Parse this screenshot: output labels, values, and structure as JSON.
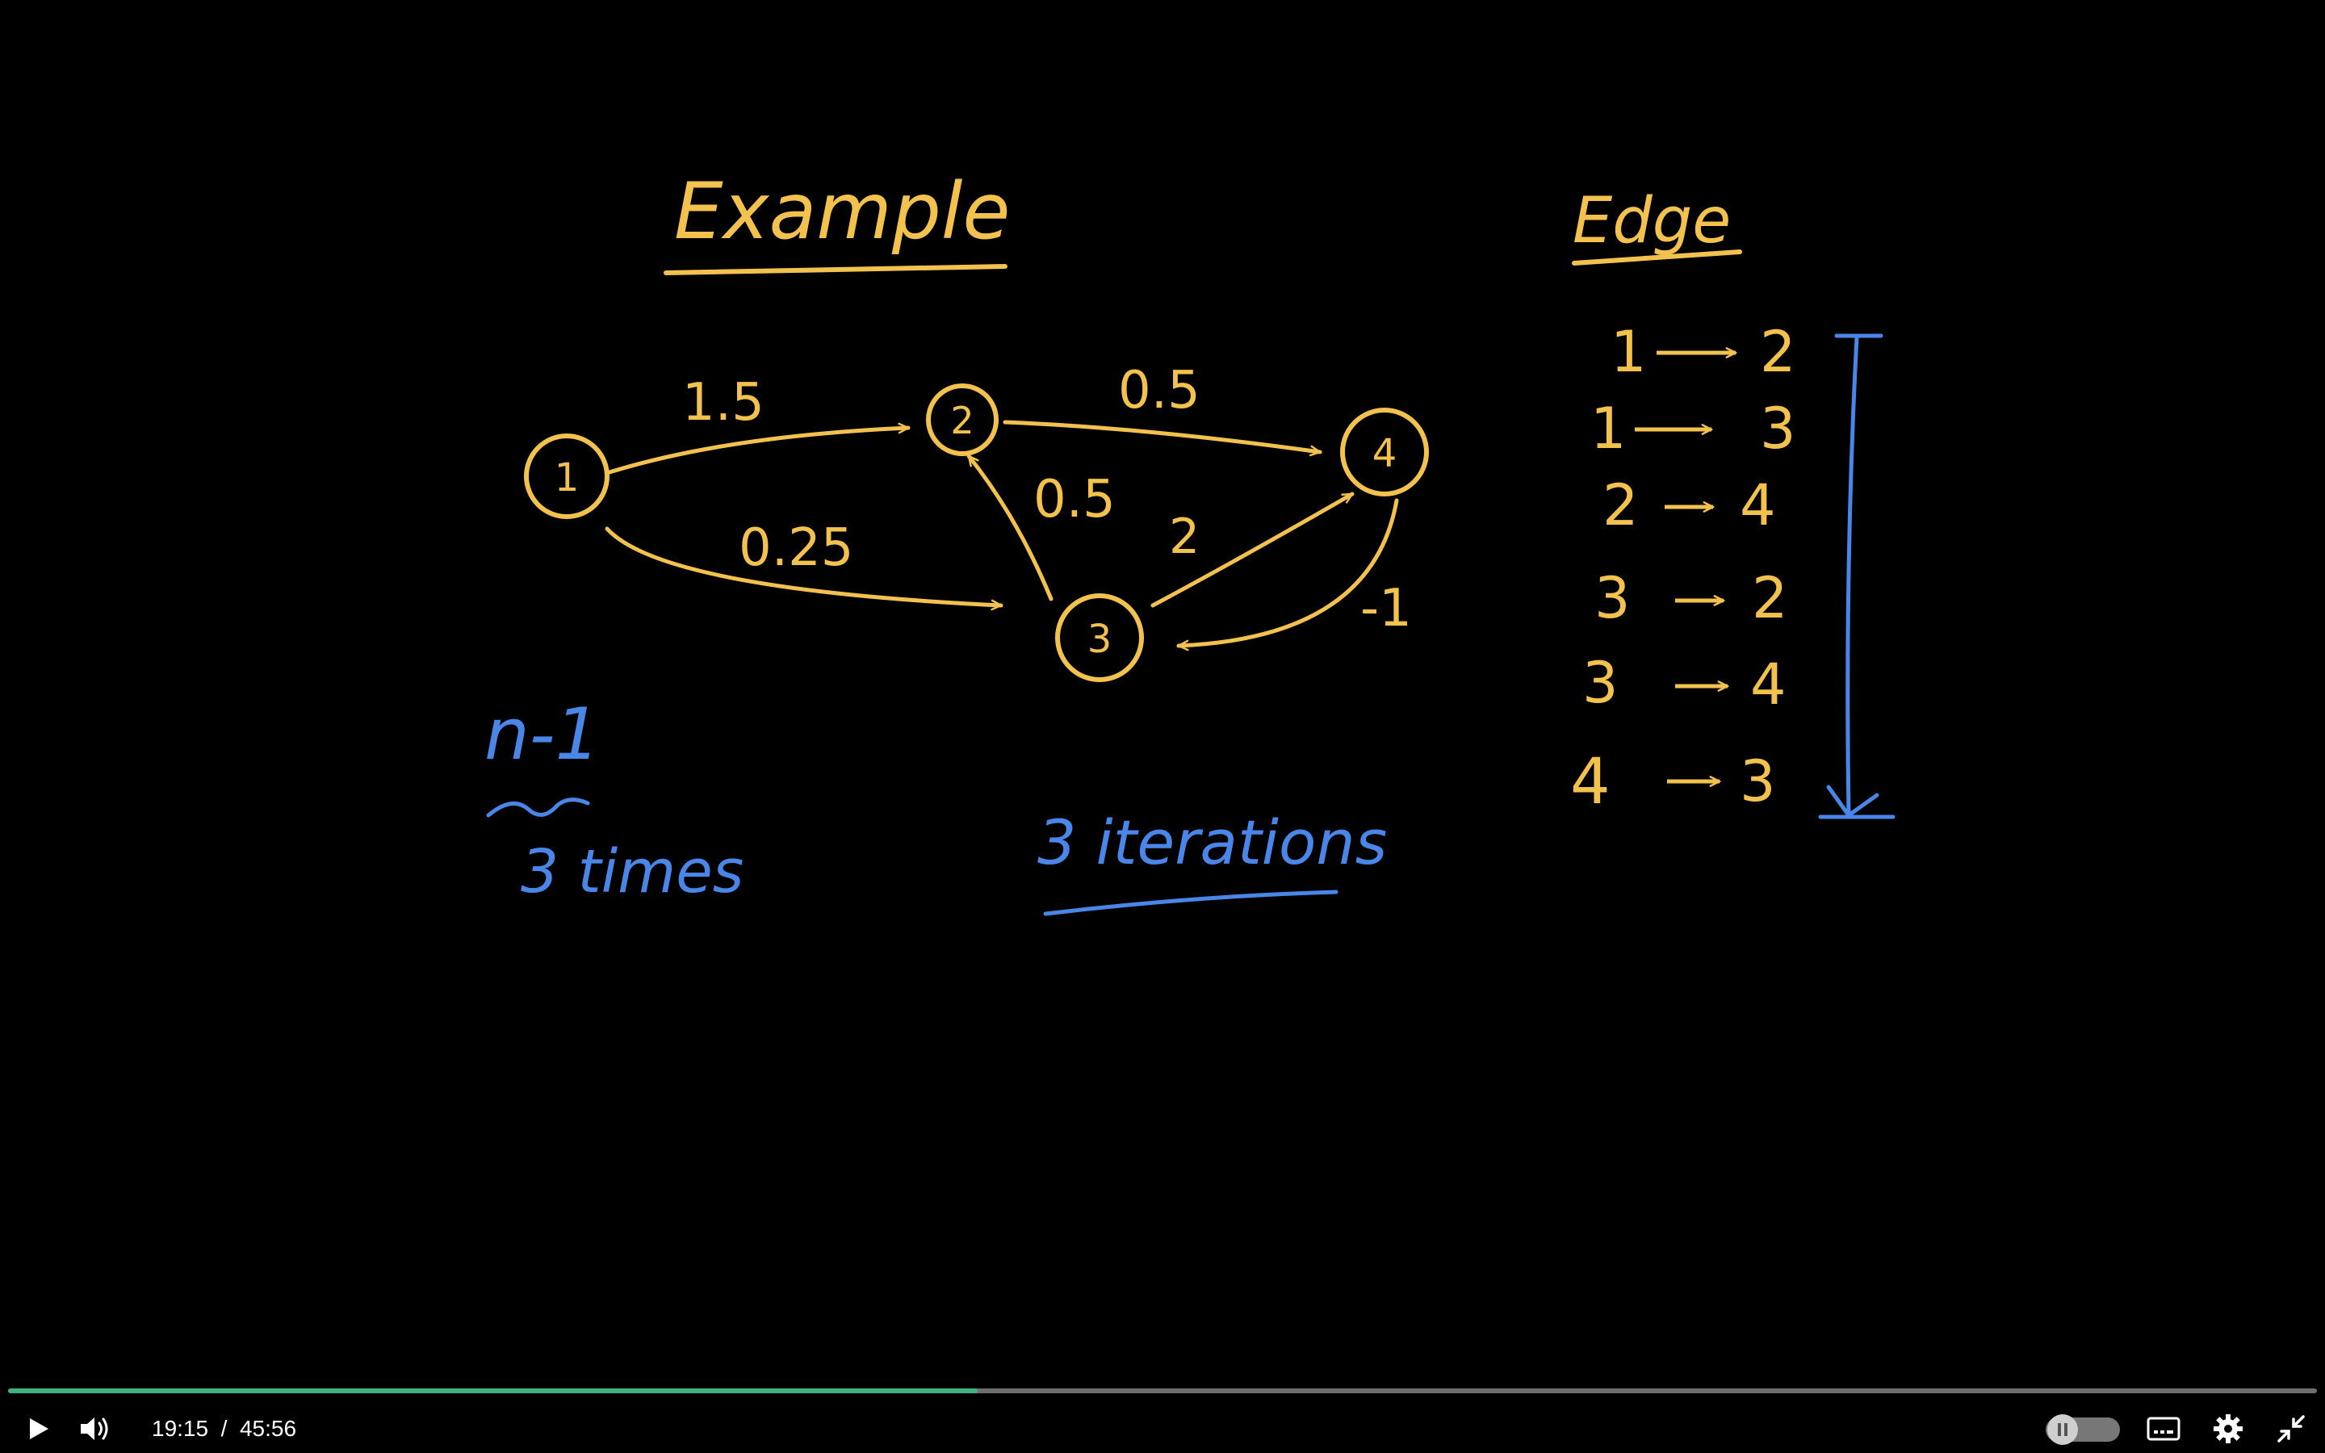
{
  "whiteboard": {
    "title": "Example",
    "edge_header": "Edge",
    "nodes": [
      "1",
      "2",
      "3",
      "4"
    ],
    "edge_weights": {
      "w_1_2": "1.5",
      "w_1_3": "0.25",
      "w_2_4": "0.5",
      "w_3_2": "0.5",
      "w_3_4": "2",
      "w_4_3": "-1"
    },
    "edge_list": [
      {
        "from": "1",
        "to": "2"
      },
      {
        "from": "1",
        "to": "3"
      },
      {
        "from": "2",
        "to": "4"
      },
      {
        "from": "3",
        "to": "2"
      },
      {
        "from": "3",
        "to": "4"
      },
      {
        "from": "4",
        "to": "3"
      }
    ],
    "note_formula": "n-1",
    "note_times": "3 times",
    "note_iterations": "3 iterations",
    "colors": {
      "ink_yellow": "#f2c14e",
      "ink_blue": "#4a86e8"
    }
  },
  "player": {
    "current_time": "19:15",
    "separator": "/",
    "duration": "45:56",
    "progress_fraction": 0.42,
    "icons": {
      "play": "play-icon",
      "volume": "volume-icon",
      "speed": "speed-toggle-icon",
      "captions": "captions-icon",
      "settings": "gear-icon",
      "fullscreen_exit": "exit-fullscreen-icon"
    },
    "colors": {
      "progress": "#3fb27f",
      "track": "#6f6f6f"
    }
  }
}
